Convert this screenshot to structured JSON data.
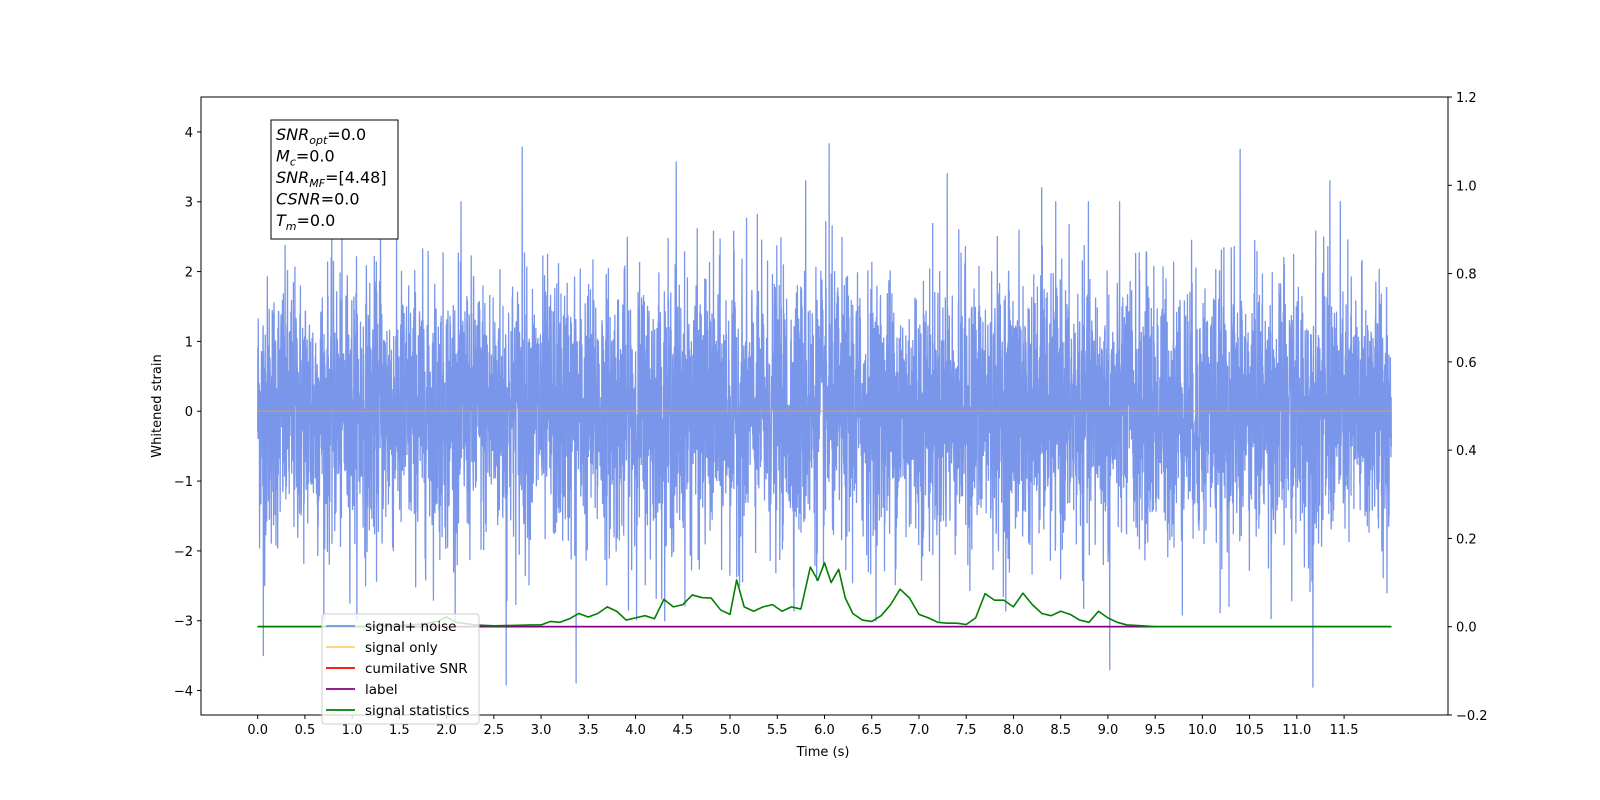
{
  "chart_data": {
    "type": "line",
    "title": "",
    "xlabel": "Time (s)",
    "ylabel": "Whitened strain",
    "xlim": [
      -0.6,
      12.6
    ],
    "ylim": [
      -4.35,
      4.5
    ],
    "y2lim": [
      -0.2,
      1.2
    ],
    "x_ticks": [
      0.0,
      0.5,
      1.0,
      1.5,
      2.0,
      2.5,
      3.0,
      3.5,
      4.0,
      4.5,
      5.0,
      5.5,
      6.0,
      6.5,
      7.0,
      7.5,
      8.0,
      8.5,
      9.0,
      9.5,
      10.0,
      10.5,
      11.0,
      11.5
    ],
    "x_tick_labels": [
      "0.0",
      "0.5",
      "1.0",
      "1.5",
      "2.0",
      "2.5",
      "3.0",
      "3.5",
      "4.0",
      "4.5",
      "5.0",
      "5.5",
      "6.0",
      "6.5",
      "7.0",
      "7.5",
      "8.0",
      "8.5",
      "9.0",
      "9.5",
      "10.0",
      "10.5",
      "11.0",
      "11.5"
    ],
    "y_ticks": [
      4,
      3,
      2,
      1,
      0,
      -1,
      -2,
      -3,
      -4
    ],
    "y_tick_labels": [
      "4",
      "3",
      "2",
      "1",
      "0",
      "−1",
      "−2",
      "−3",
      "−4"
    ],
    "y2_ticks": [
      1.2,
      1.0,
      0.8,
      0.6,
      0.4,
      0.2,
      0.0,
      -0.2
    ],
    "y2_tick_labels": [
      "1.2",
      "1.0",
      "0.8",
      "0.6",
      "0.4",
      "0.2",
      "0.0",
      "−0.2"
    ],
    "grid": false,
    "legend_position": "lower-left",
    "series": [
      {
        "name": "signal+ noise",
        "axis": "left",
        "color": "#4169e1",
        "opacity": 0.7,
        "x_range": [
          0.0,
          12.0
        ],
        "noise_std": 0.95,
        "extremes": [
          [
            0.06,
            -3.5
          ],
          [
            2.63,
            -3.92
          ],
          [
            2.8,
            3.78
          ],
          [
            3.37,
            -3.89
          ],
          [
            4.43,
            3.57
          ],
          [
            6.05,
            3.83
          ],
          [
            9.02,
            -3.7
          ],
          [
            10.4,
            3.75
          ],
          [
            11.17,
            -3.95
          ],
          [
            11.35,
            3.3
          ],
          [
            1.3,
            3.2
          ],
          [
            5.8,
            3.3
          ],
          [
            7.3,
            3.4
          ],
          [
            8.3,
            3.2
          ]
        ]
      },
      {
        "name": "signal only",
        "axis": "left",
        "color": "#ffa500",
        "opacity": 0.55,
        "x": [
          0.0,
          12.0
        ],
        "y": [
          0.0,
          0.0
        ]
      },
      {
        "name": "cumilative SNR",
        "axis": "right",
        "color": "#ff0000",
        "x": [
          0.0,
          12.0
        ],
        "y": [
          0.0,
          0.0
        ]
      },
      {
        "name": "label",
        "axis": "right",
        "color": "#800080",
        "x": [
          0.0,
          12.0
        ],
        "y": [
          0.0,
          0.0
        ]
      },
      {
        "name": "signal statistics",
        "axis": "right",
        "color": "#008000",
        "x": [
          0.0,
          1.0,
          1.5,
          1.75,
          1.9,
          2.0,
          2.1,
          2.3,
          2.5,
          2.7,
          2.9,
          3.0,
          3.1,
          3.2,
          3.3,
          3.4,
          3.5,
          3.6,
          3.7,
          3.8,
          3.9,
          4.0,
          4.1,
          4.2,
          4.3,
          4.4,
          4.5,
          4.6,
          4.7,
          4.8,
          4.9,
          5.0,
          5.07,
          5.15,
          5.25,
          5.35,
          5.45,
          5.55,
          5.65,
          5.75,
          5.85,
          5.93,
          6.0,
          6.07,
          6.15,
          6.22,
          6.3,
          6.4,
          6.5,
          6.6,
          6.7,
          6.8,
          6.9,
          7.0,
          7.1,
          7.2,
          7.3,
          7.4,
          7.5,
          7.6,
          7.7,
          7.8,
          7.9,
          8.0,
          8.1,
          8.2,
          8.3,
          8.4,
          8.5,
          8.6,
          8.7,
          8.8,
          8.9,
          9.0,
          9.1,
          9.2,
          9.3,
          9.5,
          9.8,
          10.0,
          10.5,
          11.0,
          12.0
        ],
        "y": [
          0.0,
          0.0,
          0.003,
          0.006,
          0.012,
          0.022,
          0.01,
          0.004,
          0.002,
          0.003,
          0.004,
          0.004,
          0.012,
          0.01,
          0.018,
          0.03,
          0.022,
          0.03,
          0.045,
          0.035,
          0.015,
          0.02,
          0.025,
          0.018,
          0.062,
          0.045,
          0.05,
          0.072,
          0.066,
          0.065,
          0.038,
          0.028,
          0.106,
          0.045,
          0.035,
          0.045,
          0.05,
          0.035,
          0.045,
          0.04,
          0.135,
          0.105,
          0.145,
          0.1,
          0.13,
          0.065,
          0.03,
          0.015,
          0.012,
          0.025,
          0.05,
          0.085,
          0.065,
          0.028,
          0.02,
          0.01,
          0.008,
          0.008,
          0.005,
          0.02,
          0.075,
          0.06,
          0.06,
          0.045,
          0.076,
          0.05,
          0.03,
          0.025,
          0.035,
          0.028,
          0.015,
          0.01,
          0.035,
          0.02,
          0.01,
          0.004,
          0.003,
          0.0,
          0.0,
          0.0,
          0.0,
          0.0,
          0.0
        ]
      }
    ],
    "info_box": [
      {
        "sym": "SNR",
        "sub": "opt",
        "value": "=0.0"
      },
      {
        "sym": "M",
        "sub": "c",
        "value": "=0.0"
      },
      {
        "sym": "SNR",
        "sub": "MF",
        "value": "=[4.48]"
      },
      {
        "sym": "CSNR",
        "sub": "",
        "value": "=0.0"
      },
      {
        "sym": "T",
        "sub": "m",
        "value": "=0.0"
      }
    ]
  }
}
